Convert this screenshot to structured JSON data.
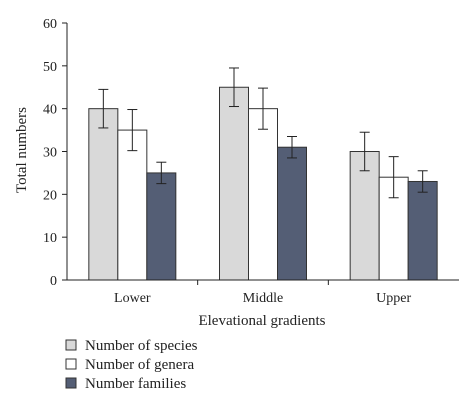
{
  "chart_data": {
    "type": "bar",
    "xlabel": "Elevational gradients",
    "ylabel": "Total numbers",
    "ylim": [
      0,
      60
    ],
    "yticks": [
      0,
      10,
      20,
      30,
      40,
      50,
      60
    ],
    "grid": false,
    "legend_position": "bottom-left",
    "categories": [
      "Lower",
      "Middle",
      "Upper"
    ],
    "series": [
      {
        "name": "Number of species",
        "color": "#d9d9d9",
        "values": [
          40,
          45,
          30
        ],
        "error": [
          4.5,
          4.5,
          4.5
        ]
      },
      {
        "name": "Number of genera",
        "color": "#ffffff",
        "values": [
          35,
          40,
          24
        ],
        "error": [
          4.8,
          4.8,
          4.8
        ]
      },
      {
        "name": "Number families",
        "color": "#545e75",
        "values": [
          25,
          31,
          23
        ],
        "error": [
          2.5,
          2.5,
          2.5
        ]
      }
    ]
  }
}
